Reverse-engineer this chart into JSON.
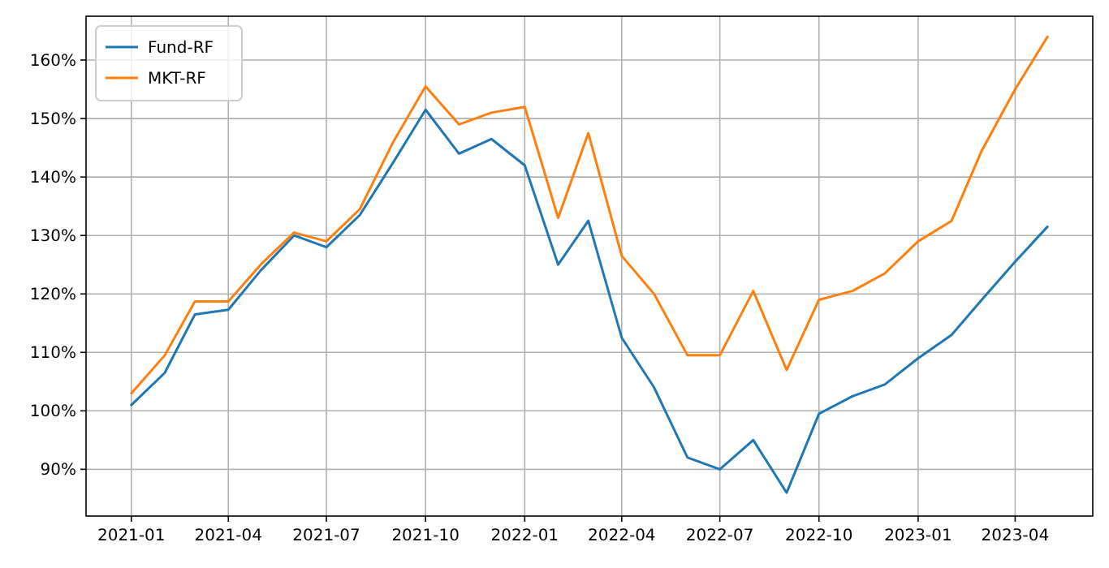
{
  "chart_data": {
    "type": "line",
    "x": [
      "2021-01",
      "2021-02",
      "2021-03",
      "2021-04",
      "2021-05",
      "2021-06",
      "2021-07",
      "2021-08",
      "2021-09",
      "2021-10",
      "2021-11",
      "2021-12",
      "2022-01",
      "2022-02",
      "2022-03",
      "2022-04",
      "2022-05",
      "2022-06",
      "2022-07",
      "2022-08",
      "2022-09",
      "2022-10",
      "2022-11",
      "2022-12",
      "2023-01",
      "2023-02",
      "2023-03",
      "2023-04",
      "2023-05"
    ],
    "series": [
      {
        "name": "Fund-RF",
        "color": "#1f77b4",
        "values": [
          101,
          106.5,
          116.5,
          117.3,
          124,
          130,
          128,
          133.5,
          142.5,
          151.5,
          144,
          146.5,
          142,
          125,
          132.5,
          112.5,
          104,
          92,
          90,
          95,
          86,
          99.5,
          102.5,
          104.5,
          109,
          113,
          119,
          125.5,
          131.5
        ]
      },
      {
        "name": "MKT-RF",
        "color": "#ff7f0e",
        "values": [
          103,
          109.5,
          118.7,
          118.7,
          125,
          130.5,
          129,
          134.5,
          146,
          155.5,
          149,
          151,
          152,
          133,
          147.5,
          126.5,
          120,
          109.5,
          109.5,
          120.5,
          107,
          119,
          120.5,
          123.5,
          129,
          132.5,
          144.5,
          155,
          164
        ]
      }
    ],
    "xlim": [
      "2020-11-20",
      "2023-06-12"
    ],
    "xticks": [
      {
        "value": "2021-01",
        "label": "2021-01"
      },
      {
        "value": "2021-04",
        "label": "2021-04"
      },
      {
        "value": "2021-07",
        "label": "2021-07"
      },
      {
        "value": "2021-10",
        "label": "2021-10"
      },
      {
        "value": "2022-01",
        "label": "2022-01"
      },
      {
        "value": "2022-04",
        "label": "2022-04"
      },
      {
        "value": "2022-07",
        "label": "2022-07"
      },
      {
        "value": "2022-10",
        "label": "2022-10"
      },
      {
        "value": "2023-01",
        "label": "2023-01"
      },
      {
        "value": "2023-04",
        "label": "2023-04"
      }
    ],
    "ylim": [
      82,
      167.5
    ],
    "yticks": [
      {
        "value": 90,
        "label": "90%"
      },
      {
        "value": 100,
        "label": "100%"
      },
      {
        "value": 110,
        "label": "110%"
      },
      {
        "value": 120,
        "label": "120%"
      },
      {
        "value": 130,
        "label": "130%"
      },
      {
        "value": 140,
        "label": "140%"
      },
      {
        "value": 150,
        "label": "150%"
      },
      {
        "value": 160,
        "label": "160%"
      }
    ],
    "grid": true,
    "legend": "top left",
    "line_style": "solid",
    "marker": "none"
  }
}
